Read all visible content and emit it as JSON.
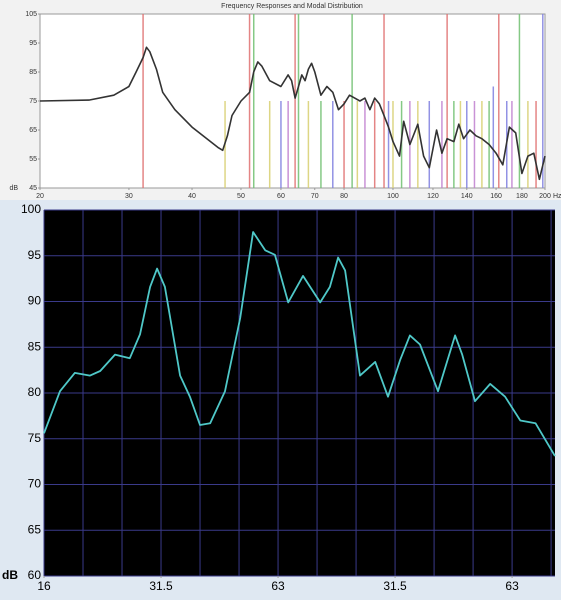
{
  "chart_data": [
    {
      "type": "line",
      "title": "Frequency Responses and Modal Distribution",
      "y_label": "dB",
      "x_label": "Hz",
      "xscale": "log",
      "xlim": [
        20,
        200
      ],
      "ylim": [
        45,
        105
      ],
      "xticks": [
        20,
        30,
        40,
        50,
        60,
        70,
        80,
        100,
        120,
        140,
        160,
        180,
        200
      ],
      "yticks": [
        45,
        55,
        65,
        75,
        85,
        95,
        105
      ],
      "color": "#333333",
      "line_width": 1.6,
      "grid": false,
      "x": [
        20,
        25,
        28,
        30,
        31,
        32,
        32.5,
        33,
        34,
        35,
        37,
        40,
        45,
        46,
        47,
        48,
        50,
        52,
        53,
        54,
        55,
        57,
        60,
        62,
        63,
        64,
        65,
        66,
        67,
        68,
        69,
        70,
        72,
        74,
        76,
        78,
        80,
        82,
        84,
        86,
        88,
        90,
        92,
        94,
        96,
        98,
        100,
        103,
        105,
        108,
        112,
        115,
        118,
        122,
        125,
        128,
        132,
        135,
        138,
        142,
        146,
        150,
        155,
        160,
        165,
        170,
        175,
        180,
        185,
        190,
        195,
        200
      ],
      "values": [
        75,
        75.3,
        77,
        80,
        85,
        90,
        93.5,
        92,
        86,
        78,
        72,
        66,
        59,
        58,
        63,
        70,
        75,
        78,
        85,
        88.5,
        87,
        82,
        80,
        84,
        82,
        76,
        80,
        84,
        82,
        86,
        88,
        85,
        77,
        80,
        78,
        72,
        74,
        77,
        76,
        75,
        76,
        72,
        76,
        74,
        70,
        66,
        61,
        56,
        68,
        60,
        67,
        56,
        52,
        65,
        57,
        62,
        61,
        67,
        62,
        65,
        63,
        62,
        60,
        57,
        53,
        66,
        64,
        50,
        56,
        57,
        48,
        56
      ],
      "modes": {
        "x": [
          32,
          46.5,
          52,
          53,
          57,
          60,
          62,
          64,
          65,
          68,
          72,
          76,
          80,
          83,
          85,
          88,
          92,
          96,
          98,
          100,
          104,
          108,
          112,
          118,
          125,
          128,
          132,
          136,
          140,
          145,
          150,
          155,
          158,
          162,
          168,
          172,
          178,
          185,
          192,
          198
        ],
        "values": [
          105,
          75,
          105,
          105,
          75,
          75,
          75,
          105,
          105,
          75,
          75,
          75,
          75,
          105,
          75,
          75,
          75,
          105,
          75,
          75,
          75,
          75,
          75,
          75,
          75,
          105,
          75,
          75,
          75,
          75,
          75,
          75,
          80,
          105,
          75,
          75,
          105,
          75,
          75,
          105
        ],
        "colors": [
          "#e07070",
          "#d8d070",
          "#e07070",
          "#70c070",
          "#d8d070",
          "#8080e0",
          "#c080d0",
          "#e07070",
          "#70c070",
          "#d8d070",
          "#70c070",
          "#8080e0",
          "#e07070",
          "#70c070",
          "#d8d070",
          "#c080d0",
          "#e07070",
          "#e07070",
          "#8080e0",
          "#d8d070",
          "#70c070",
          "#c080d0",
          "#d8d070",
          "#8080e0",
          "#c080d0",
          "#e07070",
          "#70c070",
          "#d8d070",
          "#8080e0",
          "#c080d0",
          "#d8d070",
          "#70c070",
          "#8080e0",
          "#e07070",
          "#8080e0",
          "#c080d0",
          "#70c070",
          "#d8d070",
          "#e07070",
          "#8080e0"
        ]
      }
    },
    {
      "type": "line",
      "y_label": "dB",
      "xscale": "linear",
      "xlim": [
        0,
        13.1
      ],
      "ylim": [
        60,
        100
      ],
      "xticks": [
        {
          "value": 0,
          "label": "16"
        },
        {
          "value": 3,
          "label": "31.5"
        },
        {
          "value": 6,
          "label": "63"
        },
        {
          "value": 9,
          "label": "31.5"
        },
        {
          "value": 12,
          "label": "63"
        }
      ],
      "xgrid": [
        0,
        1,
        2,
        3,
        4,
        5,
        6,
        7,
        8,
        9,
        10,
        11,
        12,
        13
      ],
      "yticks": [
        60,
        65,
        70,
        75,
        80,
        85,
        90,
        95,
        100
      ],
      "color": "#4fc8c8",
      "line_width": 1.8,
      "grid": true,
      "x": [
        0,
        0.41,
        0.79,
        1.18,
        1.44,
        1.82,
        2.2,
        2.46,
        2.72,
        2.9,
        3.1,
        3.49,
        3.74,
        4.0,
        4.26,
        4.64,
        5.03,
        5.36,
        5.67,
        5.92,
        6.26,
        6.64,
        7.08,
        7.33,
        7.54,
        7.72,
        8.1,
        8.49,
        8.82,
        9.13,
        9.38,
        9.64,
        10.1,
        10.54,
        10.72,
        11.05,
        11.44,
        11.82,
        12.21,
        12.6,
        13.1
      ],
      "values": [
        75.6,
        80.2,
        82.2,
        81.9,
        82.4,
        84.2,
        83.8,
        86.4,
        91.6,
        93.6,
        91.6,
        81.9,
        79.6,
        76.5,
        76.7,
        80.2,
        88.2,
        97.6,
        95.6,
        95.1,
        89.9,
        92.8,
        89.9,
        91.6,
        94.8,
        93.4,
        81.9,
        83.4,
        79.6,
        83.6,
        86.3,
        85.3,
        80.2,
        86.3,
        84.2,
        79.1,
        81.0,
        79.6,
        77.0,
        76.7,
        73.1
      ]
    }
  ]
}
